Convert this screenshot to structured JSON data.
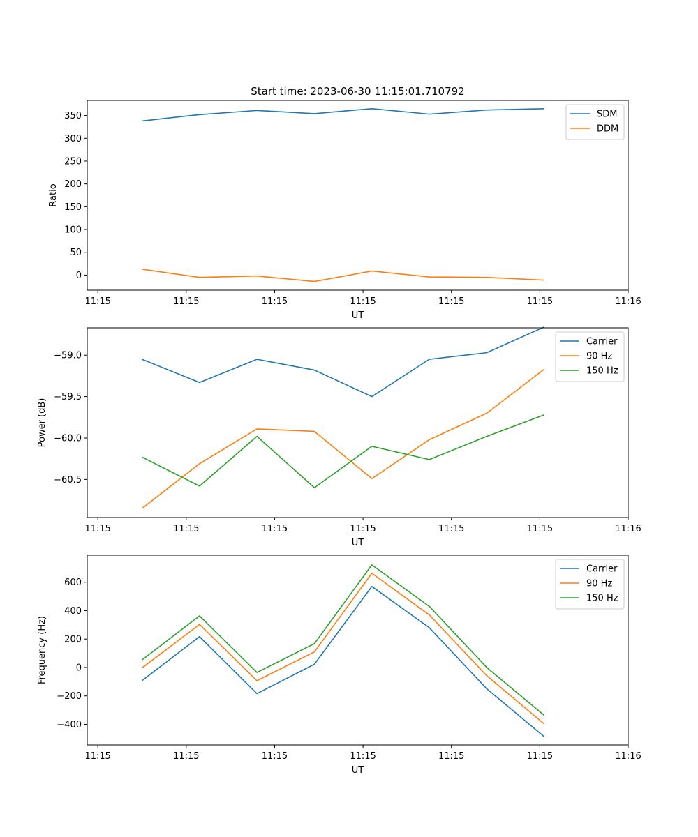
{
  "title": "Start time: 2023-06-30 11:15:01.710792",
  "colors": {
    "series1": "#1f77b4",
    "series2": "#ff7f0e",
    "series3": "#2ca02c"
  },
  "chart_data": [
    {
      "type": "line",
      "panel": "ratio",
      "title": "Start time: 2023-06-30 11:15:01.710792",
      "xlabel": "UT",
      "ylabel": "Ratio",
      "x_tick_labels": [
        "11:15",
        "11:15",
        "11:15",
        "11:15",
        "11:15",
        "11:15",
        "11:16"
      ],
      "x_ticks": [
        0,
        1,
        2,
        3,
        4,
        5,
        6
      ],
      "x": [
        0.5,
        1.15,
        1.8,
        2.45,
        3.1,
        3.75,
        4.4,
        5.05
      ],
      "xlim": [
        -0.12,
        6.0
      ],
      "ylim": [
        -33,
        383
      ],
      "y_ticks": [
        0,
        50,
        100,
        150,
        200,
        250,
        300,
        350
      ],
      "y_tick_labels": [
        "0",
        "50",
        "100",
        "150",
        "200",
        "250",
        "300",
        "350"
      ],
      "legend": "top-right",
      "series": [
        {
          "name": "SDM",
          "color": "#1f77b4",
          "values": [
            338,
            352,
            361,
            354,
            365,
            353,
            362,
            365
          ]
        },
        {
          "name": "DDM",
          "color": "#ff7f0e",
          "values": [
            13,
            -5,
            -2,
            -14,
            9,
            -4,
            -5,
            -11
          ]
        }
      ]
    },
    {
      "type": "line",
      "panel": "power",
      "xlabel": "UT",
      "ylabel": "Power (dB)",
      "x_tick_labels": [
        "11:15",
        "11:15",
        "11:15",
        "11:15",
        "11:15",
        "11:15",
        "11:16"
      ],
      "x_ticks": [
        0,
        1,
        2,
        3,
        4,
        5,
        6
      ],
      "x": [
        0.5,
        1.15,
        1.8,
        2.45,
        3.1,
        3.75,
        4.4,
        5.05
      ],
      "xlim": [
        -0.12,
        6.0
      ],
      "ylim": [
        -60.96,
        -58.67
      ],
      "y_ticks": [
        -60.5,
        -60.0,
        -59.5,
        -59.0
      ],
      "y_tick_labels": [
        "−60.5",
        "−60.0",
        "−59.5",
        "−59.0"
      ],
      "legend": "top-right",
      "series": [
        {
          "name": "Carrier",
          "color": "#1f77b4",
          "values": [
            -59.05,
            -59.33,
            -59.05,
            -59.18,
            -59.5,
            -59.05,
            -58.97,
            -58.66
          ]
        },
        {
          "name": "90 Hz",
          "color": "#ff7f0e",
          "values": [
            -60.85,
            -60.31,
            -59.89,
            -59.92,
            -60.49,
            -60.02,
            -59.7,
            -59.17
          ]
        },
        {
          "name": "150 Hz",
          "color": "#2ca02c",
          "values": [
            -60.23,
            -60.58,
            -59.98,
            -60.6,
            -60.1,
            -60.26,
            -59.98,
            -59.72
          ]
        }
      ]
    },
    {
      "type": "line",
      "panel": "frequency",
      "xlabel": "UT",
      "ylabel": "Frequency (Hz)",
      "x_tick_labels": [
        "11:15",
        "11:15",
        "11:15",
        "11:15",
        "11:15",
        "11:15",
        "11:16"
      ],
      "x_ticks": [
        0,
        1,
        2,
        3,
        4,
        5,
        6
      ],
      "x": [
        0.5,
        1.15,
        1.8,
        2.45,
        3.1,
        3.75,
        4.4,
        5.05
      ],
      "xlim": [
        -0.12,
        6.0
      ],
      "ylim": [
        -545,
        790
      ],
      "y_ticks": [
        -400,
        -200,
        0,
        200,
        400,
        600
      ],
      "y_tick_labels": [
        "−400",
        "−200",
        "0",
        "200",
        "400",
        "600"
      ],
      "legend": "top-right",
      "series": [
        {
          "name": "Carrier",
          "color": "#1f77b4",
          "values": [
            -92,
            217,
            -184,
            23,
            570,
            280,
            -150,
            -487
          ]
        },
        {
          "name": "90 Hz",
          "color": "#ff7f0e",
          "values": [
            -3,
            303,
            -93,
            110,
            663,
            370,
            -58,
            -397
          ]
        },
        {
          "name": "150 Hz",
          "color": "#2ca02c",
          "values": [
            53,
            363,
            -35,
            168,
            722,
            430,
            0,
            -337
          ]
        }
      ]
    }
  ]
}
